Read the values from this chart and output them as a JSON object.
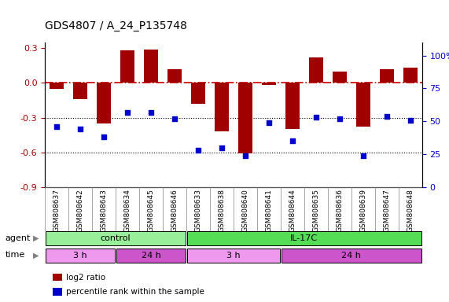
{
  "title": "GDS4807 / A_24_P135748",
  "samples": [
    "GSM808637",
    "GSM808642",
    "GSM808643",
    "GSM808634",
    "GSM808645",
    "GSM808646",
    "GSM808633",
    "GSM808638",
    "GSM808640",
    "GSM808641",
    "GSM808644",
    "GSM808635",
    "GSM808636",
    "GSM808639",
    "GSM808647",
    "GSM808648"
  ],
  "log2_ratio": [
    -0.05,
    -0.14,
    -0.35,
    0.28,
    0.29,
    0.12,
    -0.18,
    -0.42,
    -0.61,
    -0.02,
    -0.4,
    0.22,
    0.1,
    -0.38,
    0.12,
    0.13
  ],
  "percentile": [
    46,
    44,
    38,
    57,
    57,
    52,
    28,
    30,
    24,
    49,
    35,
    53,
    52,
    24,
    54,
    51
  ],
  "bar_color": "#a00000",
  "dot_color": "#0000cc",
  "background": "#ffffff",
  "dashed_line_color": "#cc0000",
  "ylim_left": [
    -0.9,
    0.35
  ],
  "ylim_right": [
    0,
    110
  ],
  "yticks_left": [
    0.3,
    0.0,
    -0.3,
    -0.6,
    -0.9
  ],
  "yticks_right": [
    100,
    75,
    50,
    25,
    0
  ],
  "ytick_right_labels": [
    "100%",
    "75",
    "50",
    "25",
    "0"
  ],
  "agent_groups": [
    {
      "label": "control",
      "start": 0,
      "end": 6,
      "color": "#99ee99"
    },
    {
      "label": "IL-17C",
      "start": 6,
      "end": 16,
      "color": "#55dd55"
    }
  ],
  "time_groups": [
    {
      "label": "3 h",
      "start": 0,
      "end": 3,
      "color": "#ee99ee"
    },
    {
      "label": "24 h",
      "start": 3,
      "end": 6,
      "color": "#cc55cc"
    },
    {
      "label": "3 h",
      "start": 6,
      "end": 10,
      "color": "#ee99ee"
    },
    {
      "label": "24 h",
      "start": 10,
      "end": 16,
      "color": "#cc55cc"
    }
  ],
  "legend_items": [
    {
      "color": "#a00000",
      "label": "log2 ratio"
    },
    {
      "color": "#0000cc",
      "label": "percentile rank within the sample"
    }
  ]
}
